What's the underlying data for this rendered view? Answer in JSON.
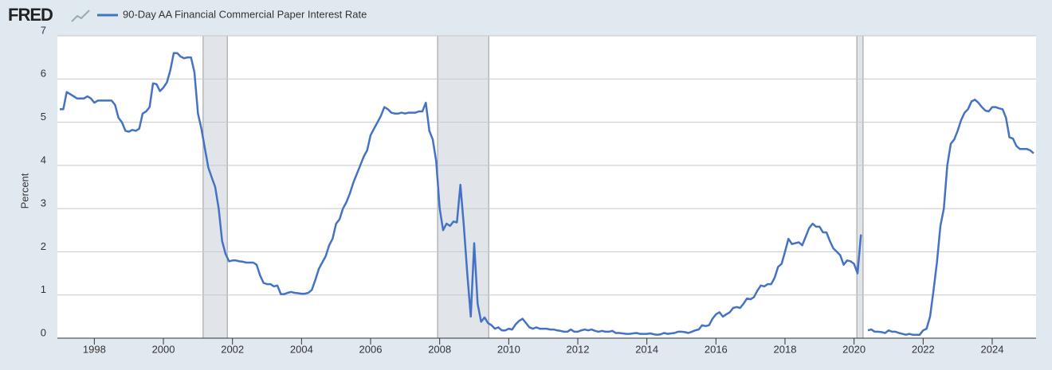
{
  "chart_data": {
    "type": "line",
    "logo": "FRED",
    "y_label": "Percent",
    "x": [
      1997.0,
      1997.1,
      1997.2,
      1997.3,
      1997.4,
      1997.5,
      1997.6,
      1997.7,
      1997.8,
      1997.9,
      1998.0,
      1998.1,
      1998.2,
      1998.3,
      1998.4,
      1998.5,
      1998.6,
      1998.7,
      1998.8,
      1998.9,
      1999.0,
      1999.1,
      1999.2,
      1999.3,
      1999.4,
      1999.5,
      1999.6,
      1999.7,
      1999.8,
      1999.9,
      2000.0,
      2000.1,
      2000.2,
      2000.3,
      2000.4,
      2000.5,
      2000.6,
      2000.7,
      2000.8,
      2000.9,
      2001.0,
      2001.1,
      2001.2,
      2001.3,
      2001.4,
      2001.5,
      2001.6,
      2001.7,
      2001.8,
      2001.9,
      2002.0,
      2002.1,
      2002.2,
      2002.3,
      2002.4,
      2002.5,
      2002.6,
      2002.7,
      2002.8,
      2002.9,
      2003.0,
      2003.1,
      2003.2,
      2003.3,
      2003.4,
      2003.5,
      2003.6,
      2003.7,
      2003.8,
      2003.9,
      2004.0,
      2004.1,
      2004.2,
      2004.3,
      2004.4,
      2004.5,
      2004.6,
      2004.7,
      2004.8,
      2004.9,
      2005.0,
      2005.1,
      2005.2,
      2005.3,
      2005.4,
      2005.5,
      2005.6,
      2005.7,
      2005.8,
      2005.9,
      2006.0,
      2006.1,
      2006.2,
      2006.3,
      2006.4,
      2006.5,
      2006.6,
      2006.7,
      2006.8,
      2006.9,
      2007.0,
      2007.1,
      2007.2,
      2007.3,
      2007.4,
      2007.5,
      2007.6,
      2007.7,
      2007.8,
      2007.9,
      2008.0,
      2008.1,
      2008.2,
      2008.3,
      2008.4,
      2008.5,
      2008.6,
      2008.7,
      2008.8,
      2008.9,
      2009.0,
      2009.1,
      2009.2,
      2009.3,
      2009.4,
      2009.5,
      2009.6,
      2009.7,
      2009.8,
      2009.9,
      2010.0,
      2010.1,
      2010.2,
      2010.3,
      2010.4,
      2010.5,
      2010.6,
      2010.7,
      2010.8,
      2010.9,
      2011.0,
      2011.1,
      2011.2,
      2011.3,
      2011.4,
      2011.5,
      2011.6,
      2011.7,
      2011.8,
      2011.9,
      2012.0,
      2012.1,
      2012.2,
      2012.3,
      2012.4,
      2012.5,
      2012.6,
      2012.7,
      2012.8,
      2012.9,
      2013.0,
      2013.1,
      2013.2,
      2013.3,
      2013.4,
      2013.5,
      2013.6,
      2013.7,
      2013.8,
      2013.9,
      2014.0,
      2014.1,
      2014.2,
      2014.3,
      2014.4,
      2014.5,
      2014.6,
      2014.7,
      2014.8,
      2014.9,
      2015.0,
      2015.1,
      2015.2,
      2015.3,
      2015.4,
      2015.5,
      2015.6,
      2015.7,
      2015.8,
      2015.9,
      2016.0,
      2016.1,
      2016.2,
      2016.3,
      2016.4,
      2016.5,
      2016.6,
      2016.7,
      2016.8,
      2016.9,
      2017.0,
      2017.1,
      2017.2,
      2017.3,
      2017.4,
      2017.5,
      2017.6,
      2017.7,
      2017.8,
      2017.9,
      2018.0,
      2018.1,
      2018.2,
      2018.3,
      2018.4,
      2018.5,
      2018.6,
      2018.7,
      2018.8,
      2018.9,
      2019.0,
      2019.1,
      2019.2,
      2019.3,
      2019.4,
      2019.5,
      2019.6,
      2019.7,
      2019.8,
      2019.9,
      2020.0,
      2020.1,
      2020.2,
      2020.3,
      2020.4,
      2020.5,
      2020.6,
      2020.7,
      2020.8,
      2020.9,
      2021.0,
      2021.1,
      2021.2,
      2021.3,
      2021.4,
      2021.5,
      2021.6,
      2021.7,
      2021.8,
      2021.9,
      2022.0,
      2022.1,
      2022.2,
      2022.3,
      2022.4,
      2022.5,
      2022.6,
      2022.7,
      2022.8,
      2022.9,
      2023.0,
      2023.1,
      2023.2,
      2023.3,
      2023.4,
      2023.5,
      2023.6,
      2023.7,
      2023.8,
      2023.9,
      2024.0,
      2024.1,
      2024.2,
      2024.3,
      2024.4,
      2024.5,
      2024.6,
      2024.7,
      2024.8,
      2024.9,
      2025.0,
      2025.1,
      2025.2
    ],
    "series": [
      {
        "name": "90-Day AA Financial Commercial Paper Interest Rate",
        "color": "#4472c4",
        "values": [
          5.3,
          5.3,
          5.7,
          5.65,
          5.6,
          5.55,
          5.55,
          5.55,
          5.6,
          5.55,
          5.45,
          5.5,
          5.5,
          5.5,
          5.5,
          5.5,
          5.4,
          5.1,
          5.0,
          4.8,
          4.78,
          4.82,
          4.8,
          4.85,
          5.2,
          5.25,
          5.35,
          5.9,
          5.88,
          5.72,
          5.8,
          5.92,
          6.2,
          6.6,
          6.6,
          6.52,
          6.48,
          6.5,
          6.5,
          6.15,
          5.2,
          4.85,
          4.4,
          3.95,
          3.72,
          3.5,
          3.0,
          2.25,
          1.95,
          1.78,
          1.8,
          1.8,
          1.78,
          1.77,
          1.75,
          1.75,
          1.75,
          1.7,
          1.45,
          1.28,
          1.25,
          1.25,
          1.2,
          1.22,
          1.02,
          1.02,
          1.05,
          1.07,
          1.05,
          1.04,
          1.03,
          1.03,
          1.05,
          1.12,
          1.35,
          1.6,
          1.75,
          1.9,
          2.15,
          2.3,
          2.65,
          2.75,
          3.0,
          3.15,
          3.35,
          3.6,
          3.8,
          4.0,
          4.2,
          4.35,
          4.7,
          4.85,
          5.0,
          5.15,
          5.35,
          5.3,
          5.22,
          5.2,
          5.2,
          5.22,
          5.2,
          5.22,
          5.22,
          5.22,
          5.25,
          5.25,
          5.45,
          4.8,
          4.6,
          4.1,
          3.0,
          2.5,
          2.65,
          2.6,
          2.7,
          2.68,
          3.55,
          2.6,
          1.5,
          0.5,
          2.2,
          0.8,
          0.38,
          0.48,
          0.35,
          0.3,
          0.22,
          0.25,
          0.18,
          0.18,
          0.22,
          0.2,
          0.32,
          0.4,
          0.45,
          0.35,
          0.25,
          0.22,
          0.25,
          0.22,
          0.22,
          0.22,
          0.2,
          0.2,
          0.18,
          0.17,
          0.15,
          0.15,
          0.2,
          0.15,
          0.15,
          0.18,
          0.2,
          0.18,
          0.2,
          0.17,
          0.15,
          0.17,
          0.15,
          0.15,
          0.17,
          0.12,
          0.12,
          0.11,
          0.1,
          0.1,
          0.11,
          0.12,
          0.1,
          0.1,
          0.1,
          0.11,
          0.09,
          0.08,
          0.09,
          0.12,
          0.1,
          0.11,
          0.12,
          0.15,
          0.15,
          0.14,
          0.12,
          0.15,
          0.18,
          0.2,
          0.3,
          0.28,
          0.3,
          0.45,
          0.55,
          0.6,
          0.5,
          0.55,
          0.6,
          0.7,
          0.72,
          0.7,
          0.8,
          0.92,
          0.9,
          0.95,
          1.1,
          1.22,
          1.2,
          1.25,
          1.25,
          1.4,
          1.65,
          1.72,
          2.0,
          2.3,
          2.18,
          2.2,
          2.22,
          2.15,
          2.35,
          2.55,
          2.65,
          2.58,
          2.58,
          2.45,
          2.45,
          2.25,
          2.08,
          2.0,
          1.92,
          1.7,
          1.8,
          1.78,
          1.72,
          1.5,
          2.4,
          null,
          0.18,
          0.2,
          0.15,
          0.15,
          0.14,
          0.12,
          0.18,
          0.15,
          0.15,
          0.12,
          0.1,
          0.08,
          0.1,
          0.08,
          0.08,
          0.08,
          0.18,
          0.22,
          0.5,
          1.1,
          1.75,
          2.6,
          3.0,
          4.0,
          4.5,
          4.6,
          4.8,
          5.05,
          5.22,
          5.3,
          5.48,
          5.52,
          5.45,
          5.35,
          5.27,
          5.25,
          5.35,
          5.35,
          5.32,
          5.3,
          5.1,
          4.65,
          4.62,
          4.45,
          4.38,
          4.38,
          4.38,
          4.35,
          4.28
        ]
      }
    ],
    "recessions": [
      [
        2001.15,
        2001.85
      ],
      [
        2007.94,
        2009.42
      ],
      [
        2020.08,
        2020.26
      ]
    ],
    "xlim": [
      1996.93,
      2025.27
    ],
    "ylim": [
      0,
      7
    ],
    "xticks": [
      1998,
      2000,
      2002,
      2004,
      2006,
      2008,
      2010,
      2012,
      2014,
      2016,
      2018,
      2020,
      2022,
      2024
    ],
    "yticks": [
      0,
      1,
      2,
      3,
      4,
      5,
      6,
      7
    ],
    "grid": true
  }
}
